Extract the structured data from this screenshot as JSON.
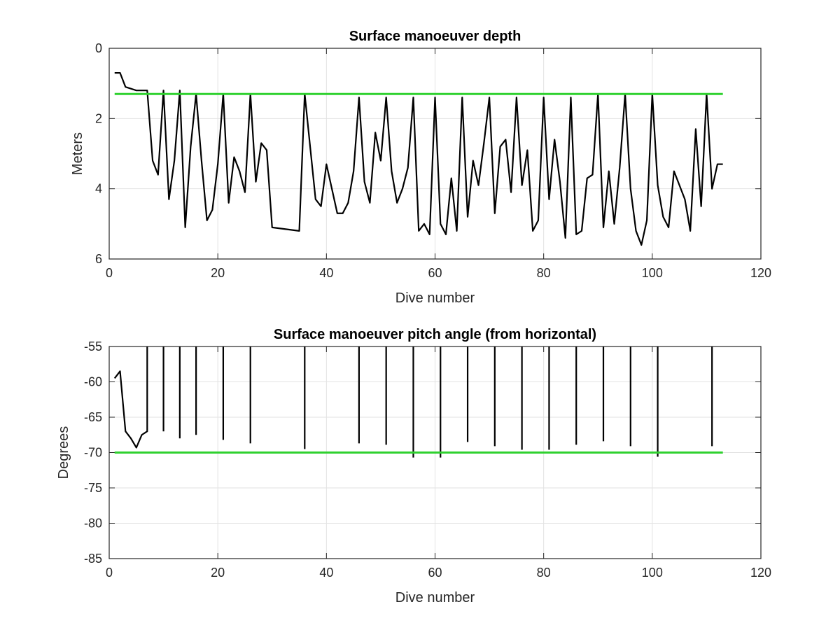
{
  "chart_data": [
    {
      "type": "line",
      "title": "Surface manoeuver depth",
      "xlabel": "Dive number",
      "ylabel": "Meters",
      "xlim": [
        0,
        120
      ],
      "ylim": [
        0,
        6
      ],
      "y_reversed": true,
      "grid": true,
      "x_ticks": [
        "0",
        "20",
        "40",
        "60",
        "80",
        "100",
        "120"
      ],
      "y_ticks": [
        "0",
        "2",
        "4",
        "6"
      ],
      "series": [
        {
          "color": "#000000",
          "x": [
            1,
            2,
            3,
            4,
            5,
            6,
            7,
            8,
            9,
            10,
            11,
            12,
            13,
            14,
            15,
            16,
            17,
            18,
            19,
            20,
            21,
            22,
            23,
            24,
            25,
            26,
            27,
            28,
            29,
            30,
            35,
            36,
            37,
            38,
            39,
            40,
            41,
            42,
            43,
            44,
            45,
            46,
            47,
            48,
            49,
            50,
            51,
            52,
            53,
            54,
            55,
            56,
            57,
            58,
            59,
            60,
            61,
            62,
            63,
            64,
            65,
            66,
            67,
            68,
            69,
            70,
            71,
            72,
            73,
            74,
            75,
            76,
            77,
            78,
            79,
            80,
            81,
            82,
            83,
            84,
            85,
            86,
            87,
            88,
            89,
            90,
            91,
            92,
            93,
            94,
            95,
            96,
            97,
            98,
            99,
            100,
            101,
            102,
            103,
            104,
            105,
            106,
            107,
            108,
            109,
            110,
            111,
            112,
            113
          ],
          "y": [
            0.7,
            0.7,
            1.1,
            1.15,
            1.2,
            1.2,
            1.2,
            3.2,
            3.6,
            1.2,
            4.3,
            3.2,
            1.2,
            5.1,
            2.8,
            1.3,
            3.2,
            4.9,
            4.6,
            3.3,
            1.3,
            4.4,
            3.1,
            3.5,
            4.1,
            1.3,
            3.8,
            2.7,
            2.9,
            5.1,
            5.2,
            1.3,
            2.8,
            4.3,
            4.5,
            3.3,
            4.0,
            4.7,
            4.7,
            4.4,
            3.5,
            1.4,
            3.8,
            4.4,
            2.4,
            3.2,
            1.4,
            3.5,
            4.4,
            4.0,
            3.4,
            1.4,
            5.2,
            5.0,
            5.3,
            1.4,
            5.0,
            5.3,
            3.7,
            5.2,
            1.4,
            4.8,
            3.2,
            3.9,
            2.7,
            1.4,
            4.7,
            2.8,
            2.6,
            4.1,
            1.4,
            3.9,
            2.9,
            5.2,
            4.9,
            1.4,
            4.3,
            2.6,
            3.8,
            5.4,
            1.4,
            5.3,
            5.2,
            3.7,
            3.6,
            1.3,
            5.1,
            3.5,
            5.0,
            3.4,
            1.3,
            4.0,
            5.2,
            5.6,
            4.9,
            1.3,
            3.9,
            4.8,
            5.1,
            3.5,
            3.9,
            4.3,
            5.2,
            2.3,
            4.5,
            1.3,
            4.0,
            3.3,
            3.3
          ]
        },
        {
          "color": "#2fd12f",
          "x": [
            1,
            113
          ],
          "y": [
            1.3,
            1.3
          ]
        }
      ]
    },
    {
      "type": "line",
      "title": "Surface manoeuver pitch angle (from horizontal)",
      "xlabel": "Dive number",
      "ylabel": "Degrees",
      "xlim": [
        0,
        120
      ],
      "ylim": [
        -85,
        -55
      ],
      "grid": true,
      "x_ticks": [
        "0",
        "20",
        "40",
        "60",
        "80",
        "100",
        "120"
      ],
      "y_ticks": [
        "-55",
        "-60",
        "-65",
        "-70",
        "-75",
        "-80",
        "-85"
      ],
      "series": [
        {
          "color": "#000000",
          "x": [
            1,
            2,
            3,
            4,
            5,
            6,
            7,
            7,
            7,
            10,
            10,
            10,
            13,
            13,
            13,
            16,
            16,
            16,
            21,
            21,
            21,
            26,
            26,
            26,
            36,
            36,
            36,
            46,
            46,
            46,
            51,
            51,
            51,
            56,
            56,
            56,
            61,
            61,
            61,
            66,
            66,
            66,
            71,
            71,
            71,
            76,
            76,
            76,
            81,
            81,
            81,
            86,
            86,
            86,
            91,
            91,
            91,
            96,
            96,
            96,
            101,
            101,
            101,
            111,
            111,
            111
          ],
          "y": [
            -59.5,
            -58.5,
            -67,
            -68,
            -69.3,
            -67.5,
            -67,
            -55,
            null,
            -55,
            -67,
            null,
            -55,
            -68,
            null,
            -55,
            -67.5,
            null,
            -55,
            -68.2,
            null,
            -55,
            -68.7,
            null,
            -55,
            -69.5,
            null,
            -55,
            -68.7,
            null,
            -55,
            -68.9,
            null,
            -55,
            -70.7,
            null,
            -55,
            -70.7,
            null,
            -55,
            -68.5,
            null,
            -55,
            -69.1,
            null,
            -55,
            -69.6,
            null,
            -55,
            -69.6,
            null,
            -55,
            -68.9,
            null,
            -55,
            -68.4,
            null,
            -55,
            -69.1,
            null,
            -55,
            -70.6,
            null,
            -55,
            -69.1,
            null
          ]
        },
        {
          "color": "#2fd12f",
          "x": [
            1,
            113
          ],
          "y": [
            -70,
            -70
          ]
        }
      ]
    }
  ]
}
